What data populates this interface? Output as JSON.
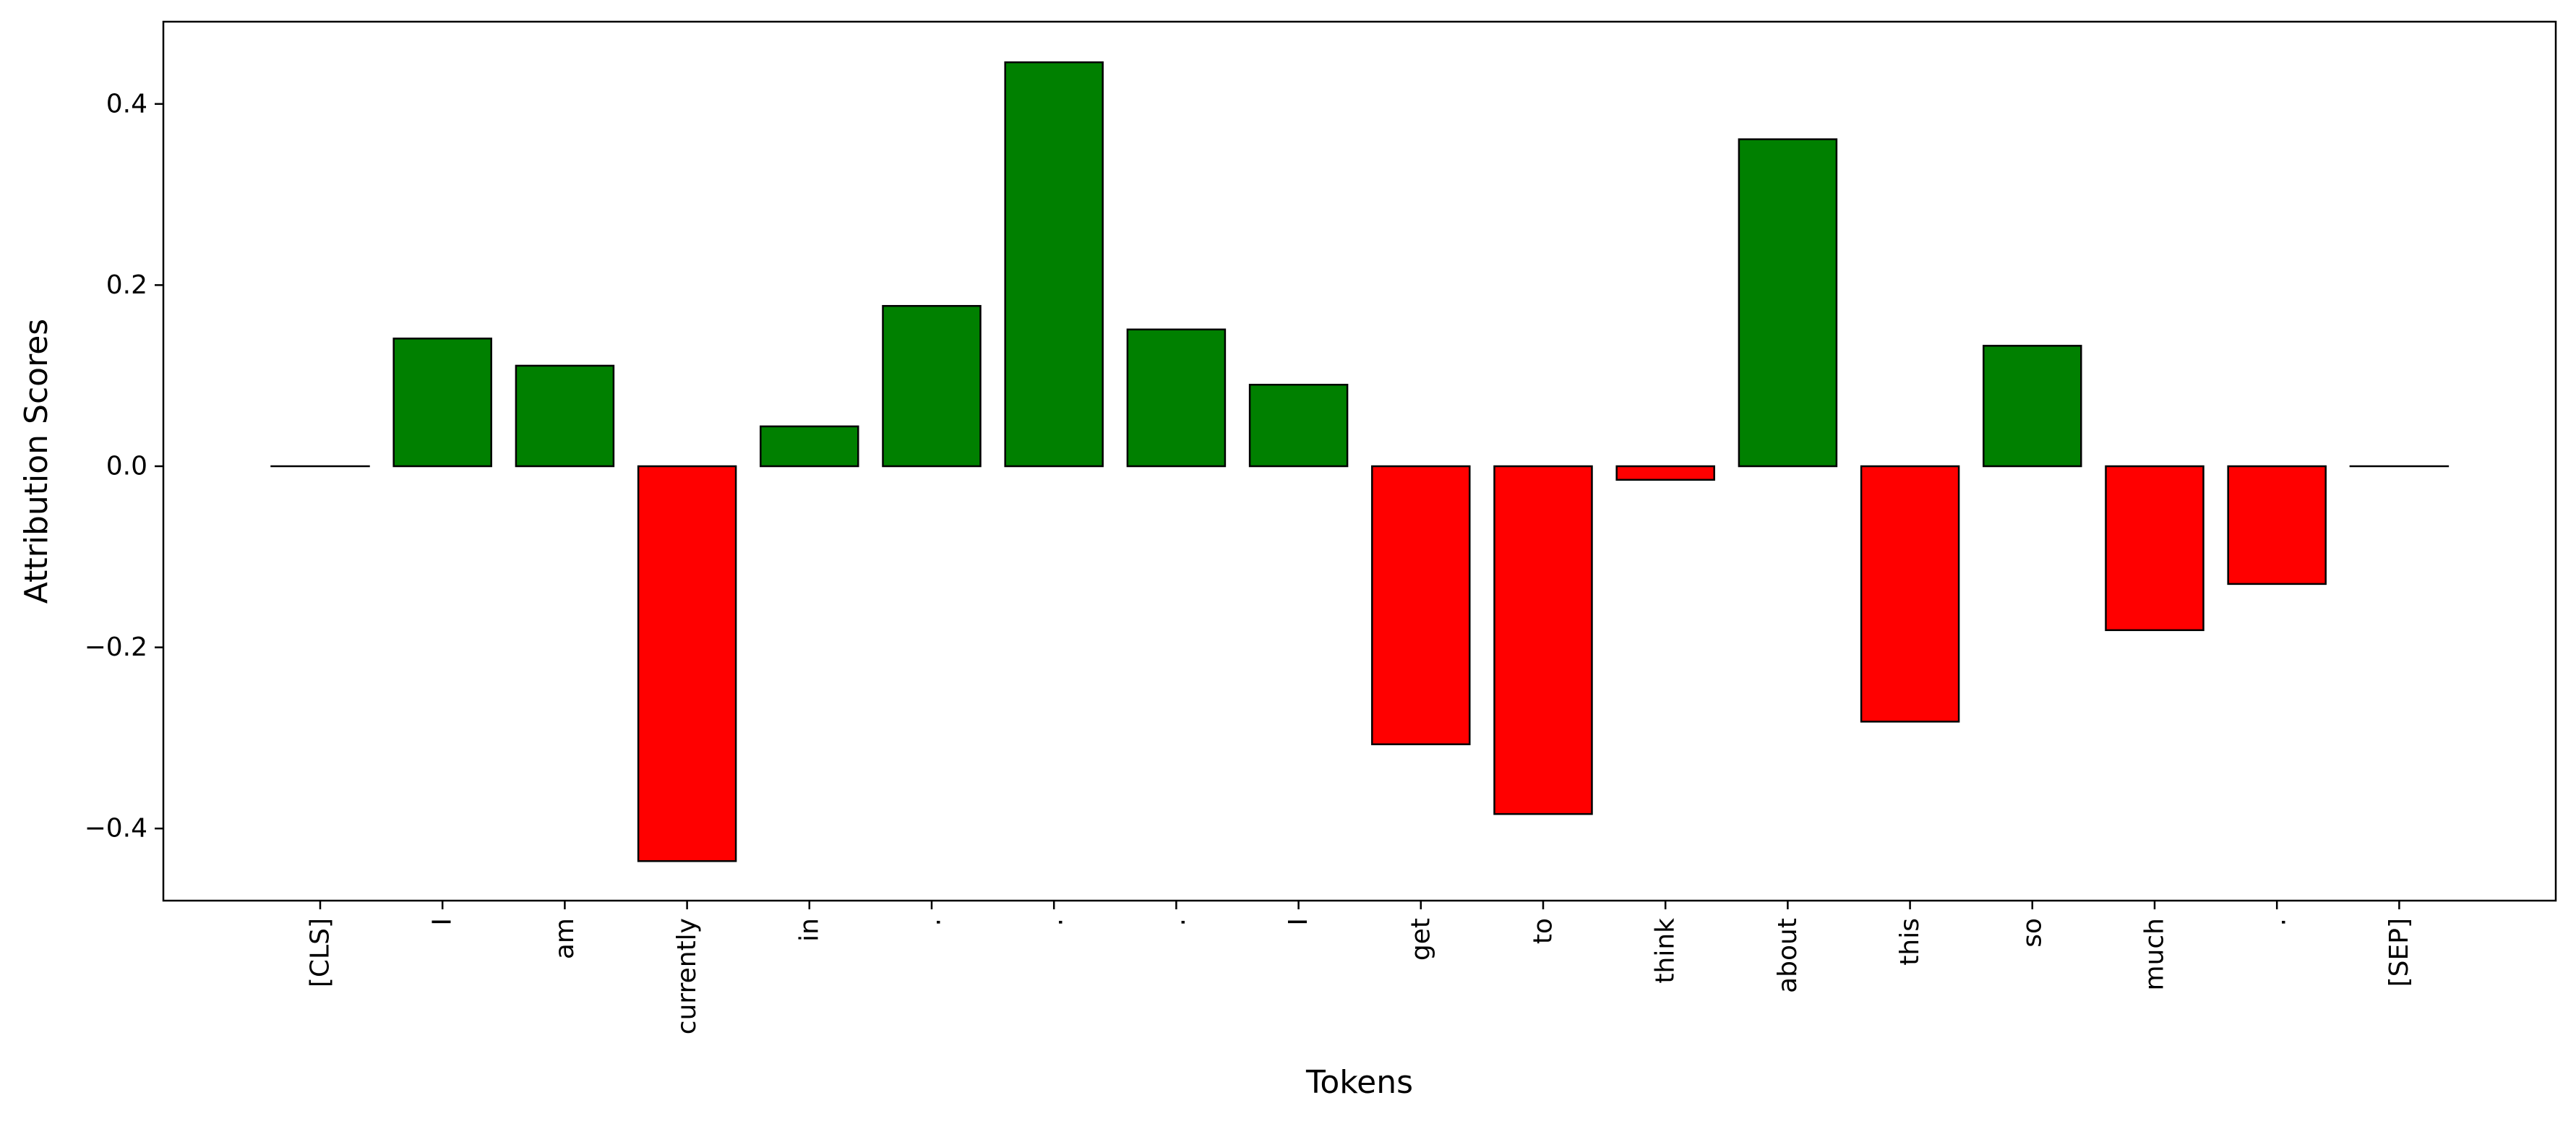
{
  "chart_data": {
    "type": "bar",
    "xlabel": "Tokens",
    "ylabel": "Attribution Scores",
    "categories": [
      "[CLS]",
      "I",
      "am",
      "currently",
      "in",
      ".",
      ".",
      ".",
      "I",
      "get",
      "to",
      "think",
      "about",
      "this",
      "so",
      "much",
      ".",
      "[SEP]"
    ],
    "values": [
      0.0,
      0.141,
      0.111,
      -0.436,
      0.044,
      0.177,
      0.446,
      0.151,
      0.09,
      -0.307,
      -0.384,
      -0.015,
      0.361,
      -0.282,
      0.133,
      -0.181,
      -0.13,
      0.0
    ],
    "ylim": [
      -0.48,
      0.49
    ],
    "yticks": [
      -0.4,
      -0.2,
      0.0,
      0.2,
      0.4
    ],
    "ytick_labels": [
      "−0.4",
      "−0.2",
      "0.0",
      "0.2",
      "0.4"
    ],
    "grid": false,
    "colors": {
      "positive": "#008000",
      "negative": "#ff0000",
      "edge": "#000000"
    }
  }
}
